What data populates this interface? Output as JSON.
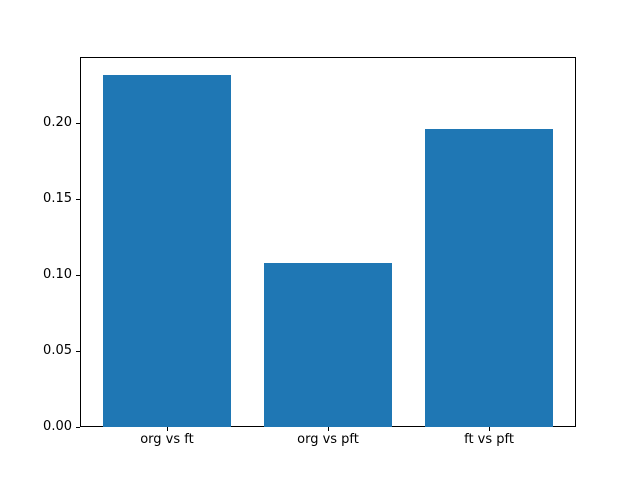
{
  "chart_data": {
    "type": "bar",
    "title": "",
    "xlabel": "",
    "ylabel": "",
    "categories": [
      "org vs ft",
      "org vs pft",
      "ft vs pft"
    ],
    "values": [
      0.232,
      0.108,
      0.196
    ],
    "yticks": [
      0.0,
      0.05,
      0.1,
      0.15,
      0.2
    ],
    "ytick_labels": [
      "0.00",
      "0.05",
      "0.10",
      "0.15",
      "0.20"
    ],
    "ylim": [
      0,
      0.2436
    ],
    "xlim": [
      -0.54,
      2.54
    ],
    "bar_width_data_units": 0.8,
    "bar_color": "#1f77b4",
    "spine_color": "#000000",
    "background_color": "#ffffff",
    "grid": false,
    "legend": null
  }
}
